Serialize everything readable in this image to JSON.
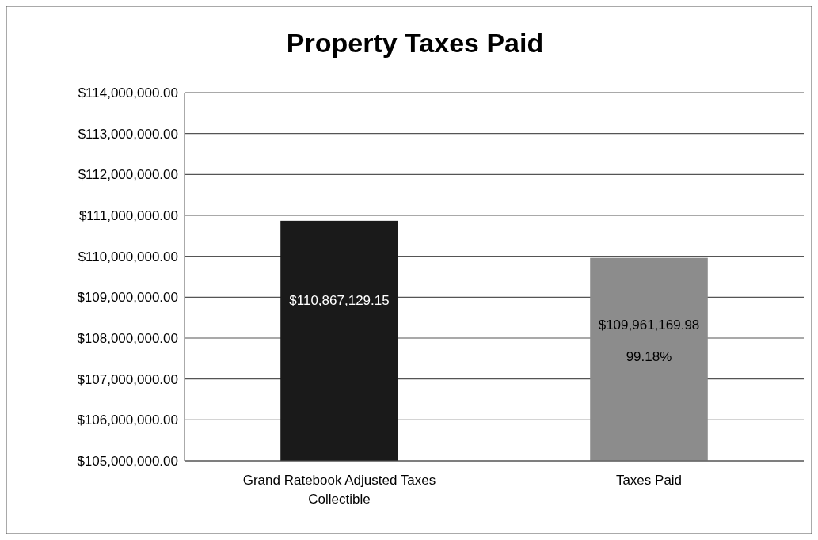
{
  "chart_data": {
    "type": "bar",
    "title": "Property Taxes Paid",
    "categories": [
      "Grand Ratebook Adjusted Taxes Collectible",
      "Taxes Paid"
    ],
    "values": [
      110867129.15,
      109961169.98
    ],
    "colors": [
      "#1a1a1a",
      "#8c8c8c"
    ],
    "value_labels": [
      "$110,867,129.15",
      "$109,961,169.98"
    ],
    "annotations": [
      "99.18%"
    ],
    "ylim": [
      105000000,
      114000000
    ],
    "yticks": [
      {
        "value": 105000000,
        "label": "$105,000,000.00"
      },
      {
        "value": 106000000,
        "label": "$106,000,000.00"
      },
      {
        "value": 107000000,
        "label": "$107,000,000.00"
      },
      {
        "value": 108000000,
        "label": "$108,000,000.00"
      },
      {
        "value": 109000000,
        "label": "$109,000,000.00"
      },
      {
        "value": 110000000,
        "label": "$110,000,000.00"
      },
      {
        "value": 111000000,
        "label": "$111,000,000.00"
      },
      {
        "value": 112000000,
        "label": "$112,000,000.00"
      },
      {
        "value": 113000000,
        "label": "$113,000,000.00"
      },
      {
        "value": 114000000,
        "label": "$114,000,000.00"
      }
    ],
    "grid": "y"
  }
}
